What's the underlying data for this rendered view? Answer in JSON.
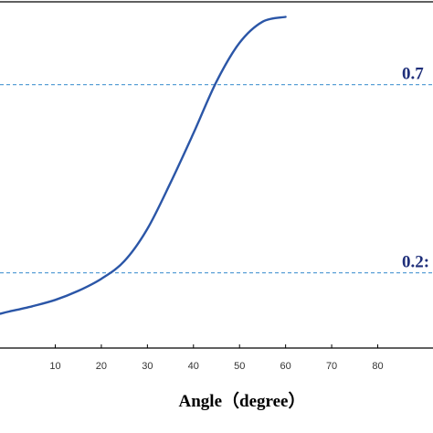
{
  "chart_data": {
    "type": "line",
    "xlabel": "Angle（degree）",
    "xlim": [
      -2,
      92
    ],
    "ylim": [
      0.05,
      0.97
    ],
    "x_ticks": [
      10,
      20,
      30,
      40,
      50,
      60,
      70,
      80
    ],
    "grid": false,
    "series": [
      {
        "color": "#2b56a7",
        "x": [
          -2,
          0,
          5,
          10,
          15,
          20,
          25,
          30,
          35,
          40,
          45,
          50,
          55,
          60
        ],
        "y": [
          0.141,
          0.147,
          0.161,
          0.178,
          0.202,
          0.234,
          0.281,
          0.367,
          0.489,
          0.621,
          0.758,
          0.861,
          0.917,
          0.93
        ]
      }
    ],
    "reference_lines": [
      {
        "y": 0.75,
        "label": "0.7",
        "color": "#5aa0d6"
      },
      {
        "y": 0.25,
        "label": "0.2:",
        "color": "#5aa0d6"
      }
    ]
  }
}
